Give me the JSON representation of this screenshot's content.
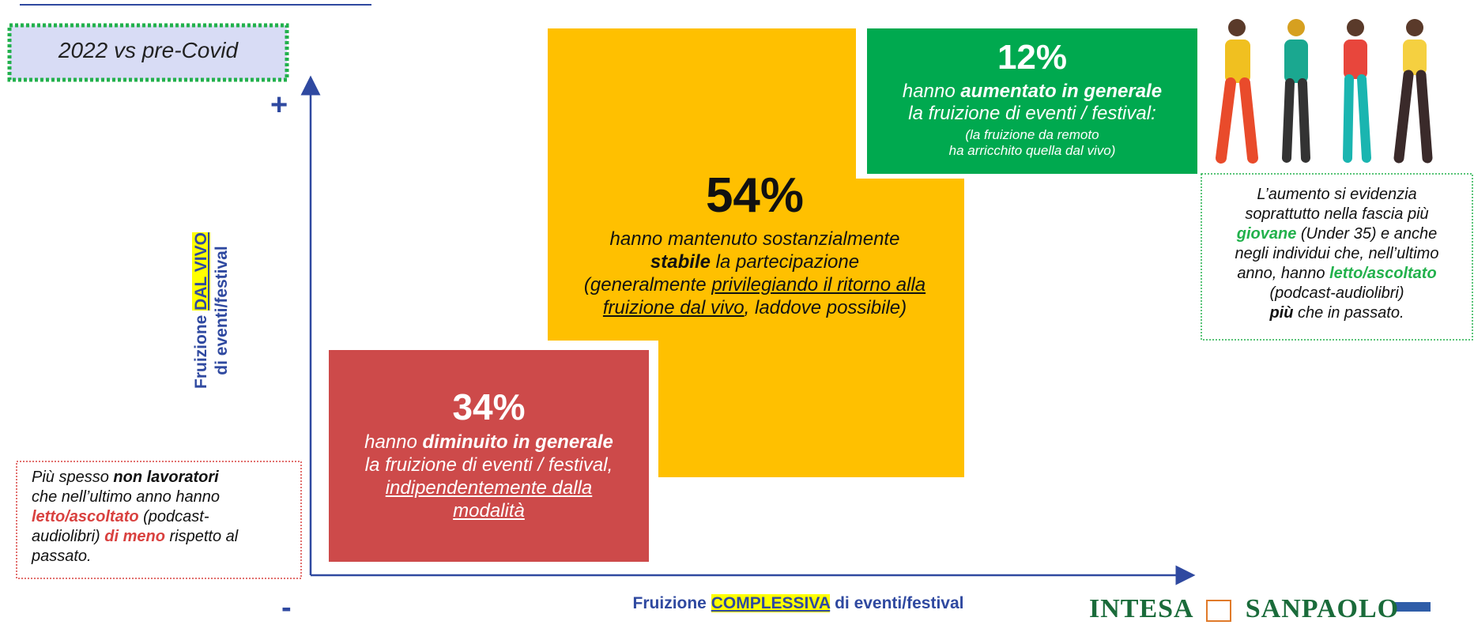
{
  "title_box": "2022 vs pre-Covid",
  "axes": {
    "plus": "+",
    "minus": "-",
    "y_label": [
      [
        {
          "t": "Fruizione "
        },
        {
          "t": "DAL VIVO",
          "s": "hl"
        }
      ],
      [
        {
          "t": "di eventi/festival"
        }
      ]
    ],
    "x_label": [
      [
        {
          "t": "Fruizione "
        },
        {
          "t": "COMPLESSIVA",
          "s": "hl"
        },
        {
          "t": " di eventi/festival"
        }
      ]
    ]
  },
  "stable": {
    "percent": "54%",
    "lines": [
      [
        {
          "t": "hanno mantenuto sostanzialmente"
        }
      ],
      [
        {
          "t": "stabile",
          "s": "b"
        },
        {
          "t": " la partecipazione"
        }
      ],
      [
        {
          "t": "(generalmente "
        },
        {
          "t": "privilegiando il ritorno alla",
          "s": "u"
        }
      ],
      [
        {
          "t": "fruizione dal vivo",
          "s": "u"
        },
        {
          "t": ", laddove possibile)"
        }
      ]
    ]
  },
  "increased": {
    "percent": "12%",
    "lines": [
      [
        {
          "t": "hanno "
        },
        {
          "t": "aumentato in generale",
          "s": "b"
        }
      ],
      [
        {
          "t": "la fruizione di eventi / festival:"
        }
      ]
    ],
    "note_lines": [
      [
        {
          "t": "(la fruizione da remoto"
        }
      ],
      [
        {
          "t": "ha arricchito quella dal vivo)"
        }
      ]
    ]
  },
  "decreased": {
    "percent": "34%",
    "lines": [
      [
        {
          "t": "hanno "
        },
        {
          "t": "diminuito in generale",
          "s": "b"
        }
      ],
      [
        {
          "t": "la fruizione di eventi / festival,"
        }
      ],
      [
        {
          "t": "indipendentemente dalla",
          "s": "u"
        }
      ],
      [
        {
          "t": "modalità",
          "s": "u"
        }
      ]
    ]
  },
  "right_note": [
    [
      {
        "t": "L’aumento si evidenzia"
      }
    ],
    [
      {
        "t": "soprattutto nella fascia più"
      }
    ],
    [
      {
        "t": "giovane",
        "s": "g"
      },
      {
        "t": " (Under 35) e anche"
      }
    ],
    [
      {
        "t": "negli individui che, nell’ultimo"
      }
    ],
    [
      {
        "t": "anno, hanno "
      },
      {
        "t": "letto/ascoltato",
        "s": "g"
      }
    ],
    [
      {
        "t": "(podcast-audiolibri)"
      }
    ],
    [
      {
        "t": "più",
        "s": "b"
      },
      {
        "t": " che in passato."
      }
    ]
  ],
  "left_note": [
    [
      {
        "t": "Più spesso "
      },
      {
        "t": "non lavoratori",
        "s": "b"
      }
    ],
    [
      {
        "t": "che nell’ultimo anno hanno"
      }
    ],
    [
      {
        "t": "letto/ascoltato",
        "s": "r"
      },
      {
        "t": " (podcast-"
      }
    ],
    [
      {
        "t": "audiolibri) "
      },
      {
        "t": "di meno",
        "s": "r"
      },
      {
        "t": " rispetto al"
      }
    ],
    [
      {
        "t": "passato."
      }
    ]
  ],
  "logo": {
    "left": "INTESA",
    "right": "SANPAOLO"
  }
}
